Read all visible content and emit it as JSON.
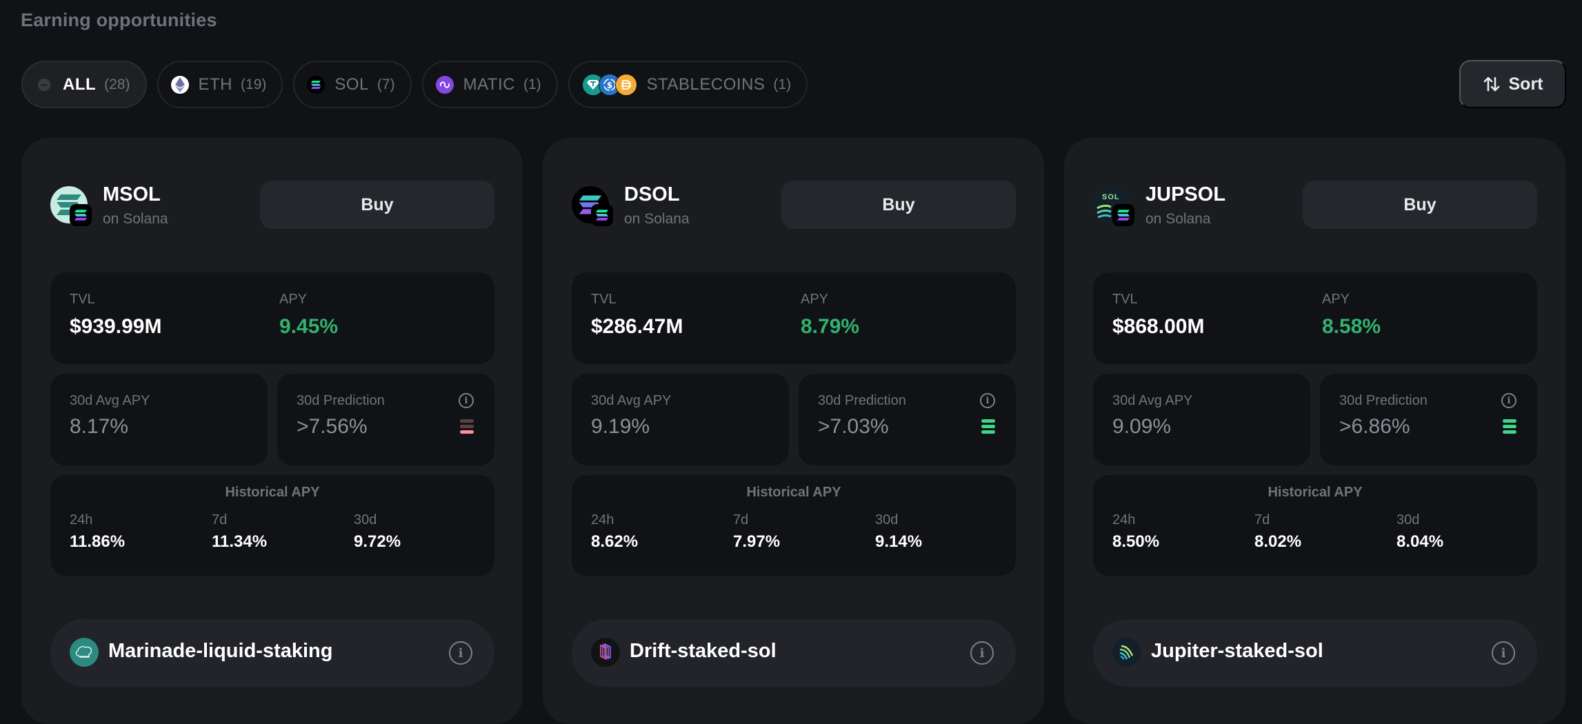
{
  "page": {
    "title": "Earning opportunities"
  },
  "filters": [
    {
      "label": "ALL",
      "count": "(28)",
      "icon": "all-icon",
      "active": true
    },
    {
      "label": "ETH",
      "count": "(19)",
      "icon": "ethereum-icon",
      "active": false
    },
    {
      "label": "SOL",
      "count": "(7)",
      "icon": "solana-icon",
      "active": false
    },
    {
      "label": "MATIC",
      "count": "(1)",
      "icon": "polygon-icon",
      "active": false
    },
    {
      "label": "STABLECOINS",
      "count": "(1)",
      "icon": "stablecoins-icon",
      "active": false
    }
  ],
  "sort": {
    "label": "Sort",
    "icon": "sort-arrows-icon"
  },
  "cards": [
    {
      "token": "MSOL",
      "chain": "on Solana",
      "buy_label": "Buy",
      "tvl_label": "TVL",
      "tvl": "$939.99M",
      "apy_label": "APY",
      "apy": "9.45%",
      "avg_label": "30d Avg APY",
      "avg": "8.17%",
      "pred_label": "30d Prediction",
      "pred": ">7.56%",
      "pred_level": 1,
      "pred_color": "#ff8f98",
      "hist_title": "Historical APY",
      "hist": [
        {
          "label": "24h",
          "value": "11.86%"
        },
        {
          "label": "7d",
          "value": "11.34%"
        },
        {
          "label": "30d",
          "value": "9.72%"
        }
      ],
      "provider": "Marinade-liquid-staking",
      "colors": {
        "logo": "#c9ece1",
        "provider": "#2d8a80"
      }
    },
    {
      "token": "DSOL",
      "chain": "on Solana",
      "buy_label": "Buy",
      "tvl_label": "TVL",
      "tvl": "$286.47M",
      "apy_label": "APY",
      "apy": "8.79%",
      "avg_label": "30d Avg APY",
      "avg": "9.19%",
      "pred_label": "30d Prediction",
      "pred": ">7.03%",
      "pred_level": 3,
      "pred_color": "#3dd68c",
      "hist_title": "Historical APY",
      "hist": [
        {
          "label": "24h",
          "value": "8.62%"
        },
        {
          "label": "7d",
          "value": "7.97%"
        },
        {
          "label": "30d",
          "value": "9.14%"
        }
      ],
      "provider": "Drift-staked-sol",
      "colors": {
        "logo": "#000000",
        "provider": "#111215"
      }
    },
    {
      "token": "JUPSOL",
      "chain": "on Solana",
      "buy_label": "Buy",
      "tvl_label": "TVL",
      "tvl": "$868.00M",
      "apy_label": "APY",
      "apy": "8.58%",
      "avg_label": "30d Avg APY",
      "avg": "9.09%",
      "pred_label": "30d Prediction",
      "pred": ">6.86%",
      "pred_level": 3,
      "pred_color": "#3dd68c",
      "hist_title": "Historical APY",
      "hist": [
        {
          "label": "24h",
          "value": "8.50%"
        },
        {
          "label": "7d",
          "value": "8.02%"
        },
        {
          "label": "30d",
          "value": "8.04%"
        }
      ],
      "provider": "Jupiter-staked-sol",
      "logo_text": "SOL",
      "colors": {
        "logo": "#13202a",
        "provider": "#13202a"
      }
    }
  ]
}
